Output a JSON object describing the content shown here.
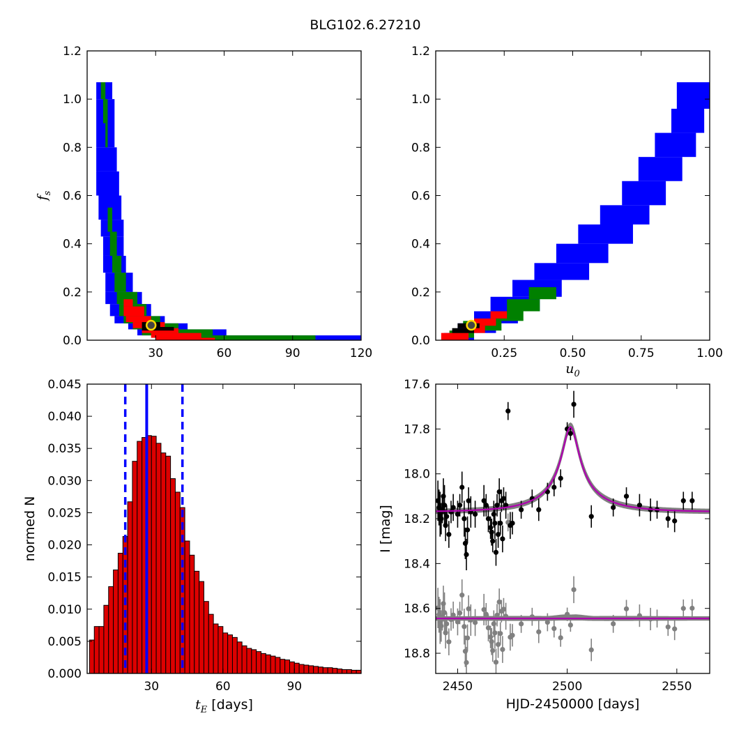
{
  "figure_title": "BLG102.6.27210",
  "colors": {
    "blue": "#0000ff",
    "green": "#008000",
    "red": "#ff0000",
    "black": "#000000",
    "marker_fill": "#444444",
    "marker_edge": "#ffd700",
    "gray": "#808080",
    "magenta": "#b000b0",
    "bar_fill": "#dd0000"
  },
  "chart_data": [
    {
      "type": "heatmap",
      "panel": "top-left",
      "xlabel": "",
      "ylabel_symbol": "f",
      "ylabel_sub": "s",
      "xlim": [
        0,
        120
      ],
      "ylim": [
        0,
        1.2
      ],
      "xticks": [
        "30",
        "60",
        "90",
        "120"
      ],
      "xtick_values": [
        30,
        60,
        90,
        120
      ],
      "yticks": [
        "0.0",
        "0.2",
        "0.4",
        "0.6",
        "0.8",
        "1.0",
        "1.2"
      ],
      "ytick_values": [
        0,
        0.2,
        0.4,
        0.6,
        0.8,
        1.0,
        1.2
      ],
      "best_fit": [
        28,
        0.062
      ],
      "regions": [
        {
          "level": "blue",
          "bands": [
            [
              4,
              1.07,
              11,
              1.0
            ],
            [
              4,
              1.0,
              12,
              0.8
            ],
            [
              4,
              0.8,
              13,
              0.7
            ],
            [
              4,
              0.7,
              14,
              0.6
            ],
            [
              5,
              0.6,
              15,
              0.5
            ],
            [
              6,
              0.5,
              16,
              0.43
            ],
            [
              7,
              0.43,
              16,
              0.35
            ],
            [
              7,
              0.35,
              17,
              0.28
            ],
            [
              8,
              0.28,
              20,
              0.2
            ],
            [
              8,
              0.2,
              24,
              0.15
            ],
            [
              10,
              0.15,
              28,
              0.1
            ],
            [
              12,
              0.1,
              34,
              0.07
            ],
            [
              18,
              0.07,
              44,
              0.045
            ],
            [
              22,
              0.045,
              61,
              0.02
            ],
            [
              30,
              0.02,
              120,
              0.0
            ]
          ]
        },
        {
          "level": "green",
          "bands": [
            [
              6,
              1.07,
              8,
              1.0
            ],
            [
              7,
              1.0,
              9,
              0.9
            ],
            [
              8,
              0.9,
              9,
              0.8
            ],
            [
              9,
              0.55,
              11,
              0.45
            ],
            [
              10,
              0.45,
              13,
              0.35
            ],
            [
              11,
              0.35,
              15,
              0.28
            ],
            [
              12,
              0.28,
              17,
              0.2
            ],
            [
              13,
              0.2,
              22,
              0.15
            ],
            [
              14,
              0.15,
              26,
              0.1
            ],
            [
              16,
              0.1,
              32,
              0.07
            ],
            [
              20,
              0.07,
              40,
              0.045
            ],
            [
              24,
              0.045,
              55,
              0.02
            ],
            [
              32,
              0.02,
              100,
              0.0
            ]
          ]
        },
        {
          "level": "red",
          "bands": [
            [
              16,
              0.17,
              20,
              0.14
            ],
            [
              16,
              0.14,
              25,
              0.1
            ],
            [
              17,
              0.1,
              28,
              0.075
            ],
            [
              20,
              0.075,
              34,
              0.05
            ],
            [
              24,
              0.05,
              40,
              0.03
            ],
            [
              28,
              0.03,
              50,
              0.01
            ],
            [
              30,
              0.01,
              56,
              0.0
            ]
          ]
        },
        {
          "level": "black",
          "bands": [
            [
              24,
              0.075,
              32,
              0.055
            ],
            [
              24,
              0.055,
              38,
              0.04
            ]
          ]
        }
      ]
    },
    {
      "type": "heatmap",
      "panel": "top-right",
      "xlabel_symbol": "u",
      "xlabel_sub": "0",
      "xlim": [
        0,
        1.0
      ],
      "ylim": [
        0,
        1.2
      ],
      "xticks": [
        "0.25",
        "0.50",
        "0.75",
        "1.00"
      ],
      "xtick_values": [
        0.25,
        0.5,
        0.75,
        1.0
      ],
      "yticks": [
        "0.0",
        "0.2",
        "0.4",
        "0.6",
        "0.8",
        "1.0",
        "1.2"
      ],
      "ytick_values": [
        0,
        0.2,
        0.4,
        0.6,
        0.8,
        1.0,
        1.2
      ],
      "best_fit": [
        0.13,
        0.062
      ],
      "regions": [
        {
          "level": "blue",
          "bands": [
            [
              0.88,
              1.07,
              1.0,
              0.96
            ],
            [
              0.86,
              0.96,
              0.98,
              0.86
            ],
            [
              0.8,
              0.86,
              0.95,
              0.76
            ],
            [
              0.74,
              0.76,
              0.9,
              0.66
            ],
            [
              0.68,
              0.66,
              0.84,
              0.56
            ],
            [
              0.6,
              0.56,
              0.78,
              0.48
            ],
            [
              0.52,
              0.48,
              0.72,
              0.4
            ],
            [
              0.44,
              0.4,
              0.63,
              0.32
            ],
            [
              0.36,
              0.32,
              0.56,
              0.25
            ],
            [
              0.28,
              0.25,
              0.46,
              0.18
            ],
            [
              0.2,
              0.18,
              0.38,
              0.12
            ],
            [
              0.14,
              0.12,
              0.3,
              0.07
            ],
            [
              0.08,
              0.07,
              0.22,
              0.03
            ],
            [
              0.03,
              0.03,
              0.14,
              0.0
            ]
          ]
        },
        {
          "level": "green",
          "bands": [
            [
              0.34,
              0.22,
              0.44,
              0.17
            ],
            [
              0.26,
              0.17,
              0.38,
              0.12
            ],
            [
              0.2,
              0.12,
              0.32,
              0.08
            ],
            [
              0.1,
              0.08,
              0.24,
              0.04
            ],
            [
              0.05,
              0.04,
              0.14,
              0.01
            ]
          ]
        },
        {
          "level": "red",
          "bands": [
            [
              0.2,
              0.12,
              0.26,
              0.09
            ],
            [
              0.14,
              0.09,
              0.22,
              0.06
            ],
            [
              0.1,
              0.06,
              0.18,
              0.03
            ],
            [
              0.02,
              0.03,
              0.12,
              0.0
            ]
          ]
        },
        {
          "level": "black",
          "bands": [
            [
              0.08,
              0.07,
              0.16,
              0.05
            ],
            [
              0.06,
              0.05,
              0.14,
              0.03
            ]
          ]
        }
      ]
    },
    {
      "type": "bar",
      "panel": "bottom-left",
      "xlabel_symbol": "t",
      "xlabel_sub": "E",
      "xlabel_suffix": "[days]",
      "ylabel": "normed N",
      "xlim": [
        3,
        118
      ],
      "ylim": [
        0,
        0.045
      ],
      "xticks": [
        "30",
        "60",
        "90"
      ],
      "xtick_values": [
        30,
        60,
        90
      ],
      "yticks": [
        "0.000",
        "0.005",
        "0.010",
        "0.015",
        "0.020",
        "0.025",
        "0.030",
        "0.035",
        "0.040",
        "0.045"
      ],
      "ytick_values": [
        0,
        0.005,
        0.01,
        0.015,
        0.02,
        0.025,
        0.03,
        0.035,
        0.04,
        0.045
      ],
      "bin_start": 4,
      "bin_width": 2,
      "values": [
        0.0052,
        0.0073,
        0.0073,
        0.0106,
        0.0135,
        0.0161,
        0.0187,
        0.0213,
        0.0267,
        0.033,
        0.0361,
        0.0367,
        0.037,
        0.0369,
        0.0358,
        0.0343,
        0.0338,
        0.0303,
        0.0282,
        0.0258,
        0.0206,
        0.0184,
        0.0159,
        0.0143,
        0.0112,
        0.0092,
        0.0077,
        0.0073,
        0.0063,
        0.006,
        0.0056,
        0.0049,
        0.0043,
        0.0039,
        0.0037,
        0.0034,
        0.0031,
        0.0029,
        0.0027,
        0.0025,
        0.0022,
        0.0021,
        0.0018,
        0.0016,
        0.0014,
        0.0013,
        0.0012,
        0.0011,
        0.001,
        0.0009,
        0.0009,
        0.0008,
        0.0007,
        0.0006,
        0.0006,
        0.0005,
        0.0005,
        0.0004
      ],
      "median": 28,
      "interval": [
        19,
        43
      ]
    },
    {
      "type": "scatter",
      "panel": "bottom-right",
      "xlabel": "HJD-2450000 [days]",
      "ylabel": "I [mag]",
      "xlim": [
        2440,
        2565
      ],
      "ylim": [
        18.89,
        17.6
      ],
      "xticks": [
        "2450",
        "2500",
        "2550"
      ],
      "xtick_values": [
        2450,
        2500,
        2550
      ],
      "yticks": [
        "17.6",
        "17.8",
        "18.0",
        "18.2",
        "18.4",
        "18.6",
        "18.8"
      ],
      "ytick_values": [
        17.6,
        17.8,
        18.0,
        18.2,
        18.4,
        18.6,
        18.8
      ],
      "model": {
        "t0": 2501.5,
        "tE": 28,
        "u0": 0.13,
        "fs": 0.062,
        "baseline": 18.17
      },
      "residual_offset": 18.645,
      "points": [
        [
          2441,
          18.12,
          0.09
        ],
        [
          2441.5,
          18.15,
          0.08
        ],
        [
          2442,
          18.18,
          0.1
        ],
        [
          2442.5,
          18.2,
          0.07
        ],
        [
          2443,
          18.16,
          0.06
        ],
        [
          2443.5,
          18.1,
          0.08
        ],
        [
          2444,
          18.14,
          0.09
        ],
        [
          2444.5,
          18.23,
          0.07
        ],
        [
          2445,
          18.19,
          0.05
        ],
        [
          2446,
          18.27,
          0.06
        ],
        [
          2447,
          18.17,
          0.05
        ],
        [
          2448,
          18.15,
          0.06
        ],
        [
          2450,
          18.18,
          0.06
        ],
        [
          2451,
          18.14,
          0.05
        ],
        [
          2452,
          18.06,
          0.07
        ],
        [
          2453,
          18.2,
          0.08
        ],
        [
          2453.5,
          18.31,
          0.07
        ],
        [
          2454,
          18.36,
          0.07
        ],
        [
          2454.5,
          18.25,
          0.06
        ],
        [
          2455,
          18.12,
          0.06
        ],
        [
          2456,
          18.17,
          0.07
        ],
        [
          2458,
          18.18,
          0.06
        ],
        [
          2462,
          18.12,
          0.07
        ],
        [
          2463,
          18.14,
          0.05
        ],
        [
          2464,
          18.2,
          0.06
        ],
        [
          2465,
          18.24,
          0.05
        ],
        [
          2465.5,
          18.26,
          0.06
        ],
        [
          2466,
          18.3,
          0.05
        ],
        [
          2466.5,
          18.18,
          0.06
        ],
        [
          2467,
          18.22,
          0.07
        ],
        [
          2467.5,
          18.35,
          0.06
        ],
        [
          2468,
          18.14,
          0.05
        ],
        [
          2468.5,
          18.27,
          0.06
        ],
        [
          2469,
          18.08,
          0.06
        ],
        [
          2469.5,
          18.22,
          0.05
        ],
        [
          2470,
          18.12,
          0.05
        ],
        [
          2470.5,
          18.29,
          0.06
        ],
        [
          2471,
          18.11,
          0.05
        ],
        [
          2472,
          18.14,
          0.06
        ],
        [
          2473,
          17.72,
          0.04
        ],
        [
          2474,
          18.23,
          0.06
        ],
        [
          2475,
          18.22,
          0.05
        ],
        [
          2479,
          18.16,
          0.04
        ],
        [
          2484,
          18.11,
          0.04
        ],
        [
          2487,
          18.16,
          0.05
        ],
        [
          2491,
          18.08,
          0.04
        ],
        [
          2494,
          18.06,
          0.04
        ],
        [
          2497,
          18.02,
          0.04
        ],
        [
          2500,
          17.8,
          0.03
        ],
        [
          2501.5,
          17.82,
          0.03
        ],
        [
          2503,
          17.69,
          0.06
        ],
        [
          2511,
          18.19,
          0.05
        ],
        [
          2521,
          18.15,
          0.04
        ],
        [
          2527,
          18.1,
          0.04
        ],
        [
          2533,
          18.14,
          0.05
        ],
        [
          2538,
          18.16,
          0.05
        ],
        [
          2541,
          18.16,
          0.04
        ],
        [
          2546,
          18.2,
          0.04
        ],
        [
          2549,
          18.21,
          0.05
        ],
        [
          2553,
          18.12,
          0.04
        ],
        [
          2557,
          18.12,
          0.04
        ]
      ]
    }
  ]
}
